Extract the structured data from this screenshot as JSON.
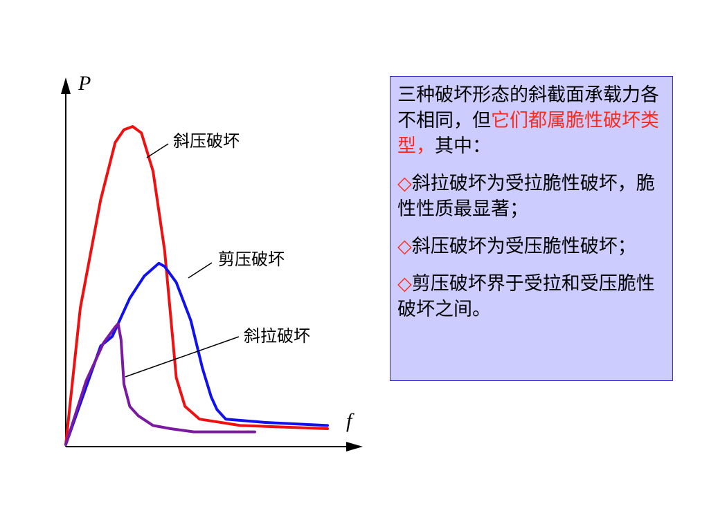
{
  "chart_data": {
    "type": "line",
    "xlabel": "f",
    "ylabel": "P",
    "xlim": [
      0,
      100
    ],
    "ylim": [
      0,
      100
    ],
    "series": [
      {
        "name": "斜压破坏",
        "color": "#ee1111",
        "points": [
          [
            0,
            0
          ],
          [
            5,
            43
          ],
          [
            12,
            77
          ],
          [
            17,
            95
          ],
          [
            20,
            99
          ],
          [
            23,
            100
          ],
          [
            26,
            98
          ],
          [
            30,
            86
          ],
          [
            34,
            61
          ],
          [
            38,
            21
          ],
          [
            41,
            12
          ],
          [
            46,
            8
          ],
          [
            60,
            6
          ],
          [
            90,
            5
          ]
        ]
      },
      {
        "name": "剪压破坏",
        "color": "#1111ee",
        "points": [
          [
            0,
            0
          ],
          [
            12,
            31
          ],
          [
            16,
            34
          ],
          [
            22,
            46
          ],
          [
            27,
            53
          ],
          [
            32,
            57
          ],
          [
            34,
            56
          ],
          [
            38,
            51
          ],
          [
            43,
            39
          ],
          [
            47,
            24
          ],
          [
            50,
            15
          ],
          [
            52,
            11
          ],
          [
            55,
            8
          ],
          [
            68,
            7
          ],
          [
            90,
            6
          ]
        ]
      },
      {
        "name": "斜拉破坏",
        "color": "#7a1aa0",
        "points": [
          [
            0,
            0
          ],
          [
            7,
            20
          ],
          [
            13,
            32
          ],
          [
            17,
            37
          ],
          [
            18,
            38
          ],
          [
            19,
            33
          ],
          [
            20,
            19
          ],
          [
            22,
            12
          ],
          [
            25,
            9
          ],
          [
            30,
            6
          ],
          [
            36,
            5
          ],
          [
            44,
            4
          ],
          [
            52,
            4
          ],
          [
            65,
            4
          ]
        ]
      }
    ]
  },
  "panel": {
    "intro_a": "三种破坏形态的斜截面承载力各不相同，但",
    "intro_highlight": "它们都属脆性破坏类型，",
    "intro_b": "其中：",
    "marker": "◇",
    "item1": "斜拉破坏为受拉脆性破坏，脆性性质最显著；",
    "item2": "斜压破坏为受压脆性破坏；",
    "item3": "剪压破坏界于受拉和受压脆性破坏之间。"
  },
  "colors": {
    "highlight": "#ff2a1a",
    "panel_background": "#ccccff",
    "panel_border": "#3333cc"
  }
}
